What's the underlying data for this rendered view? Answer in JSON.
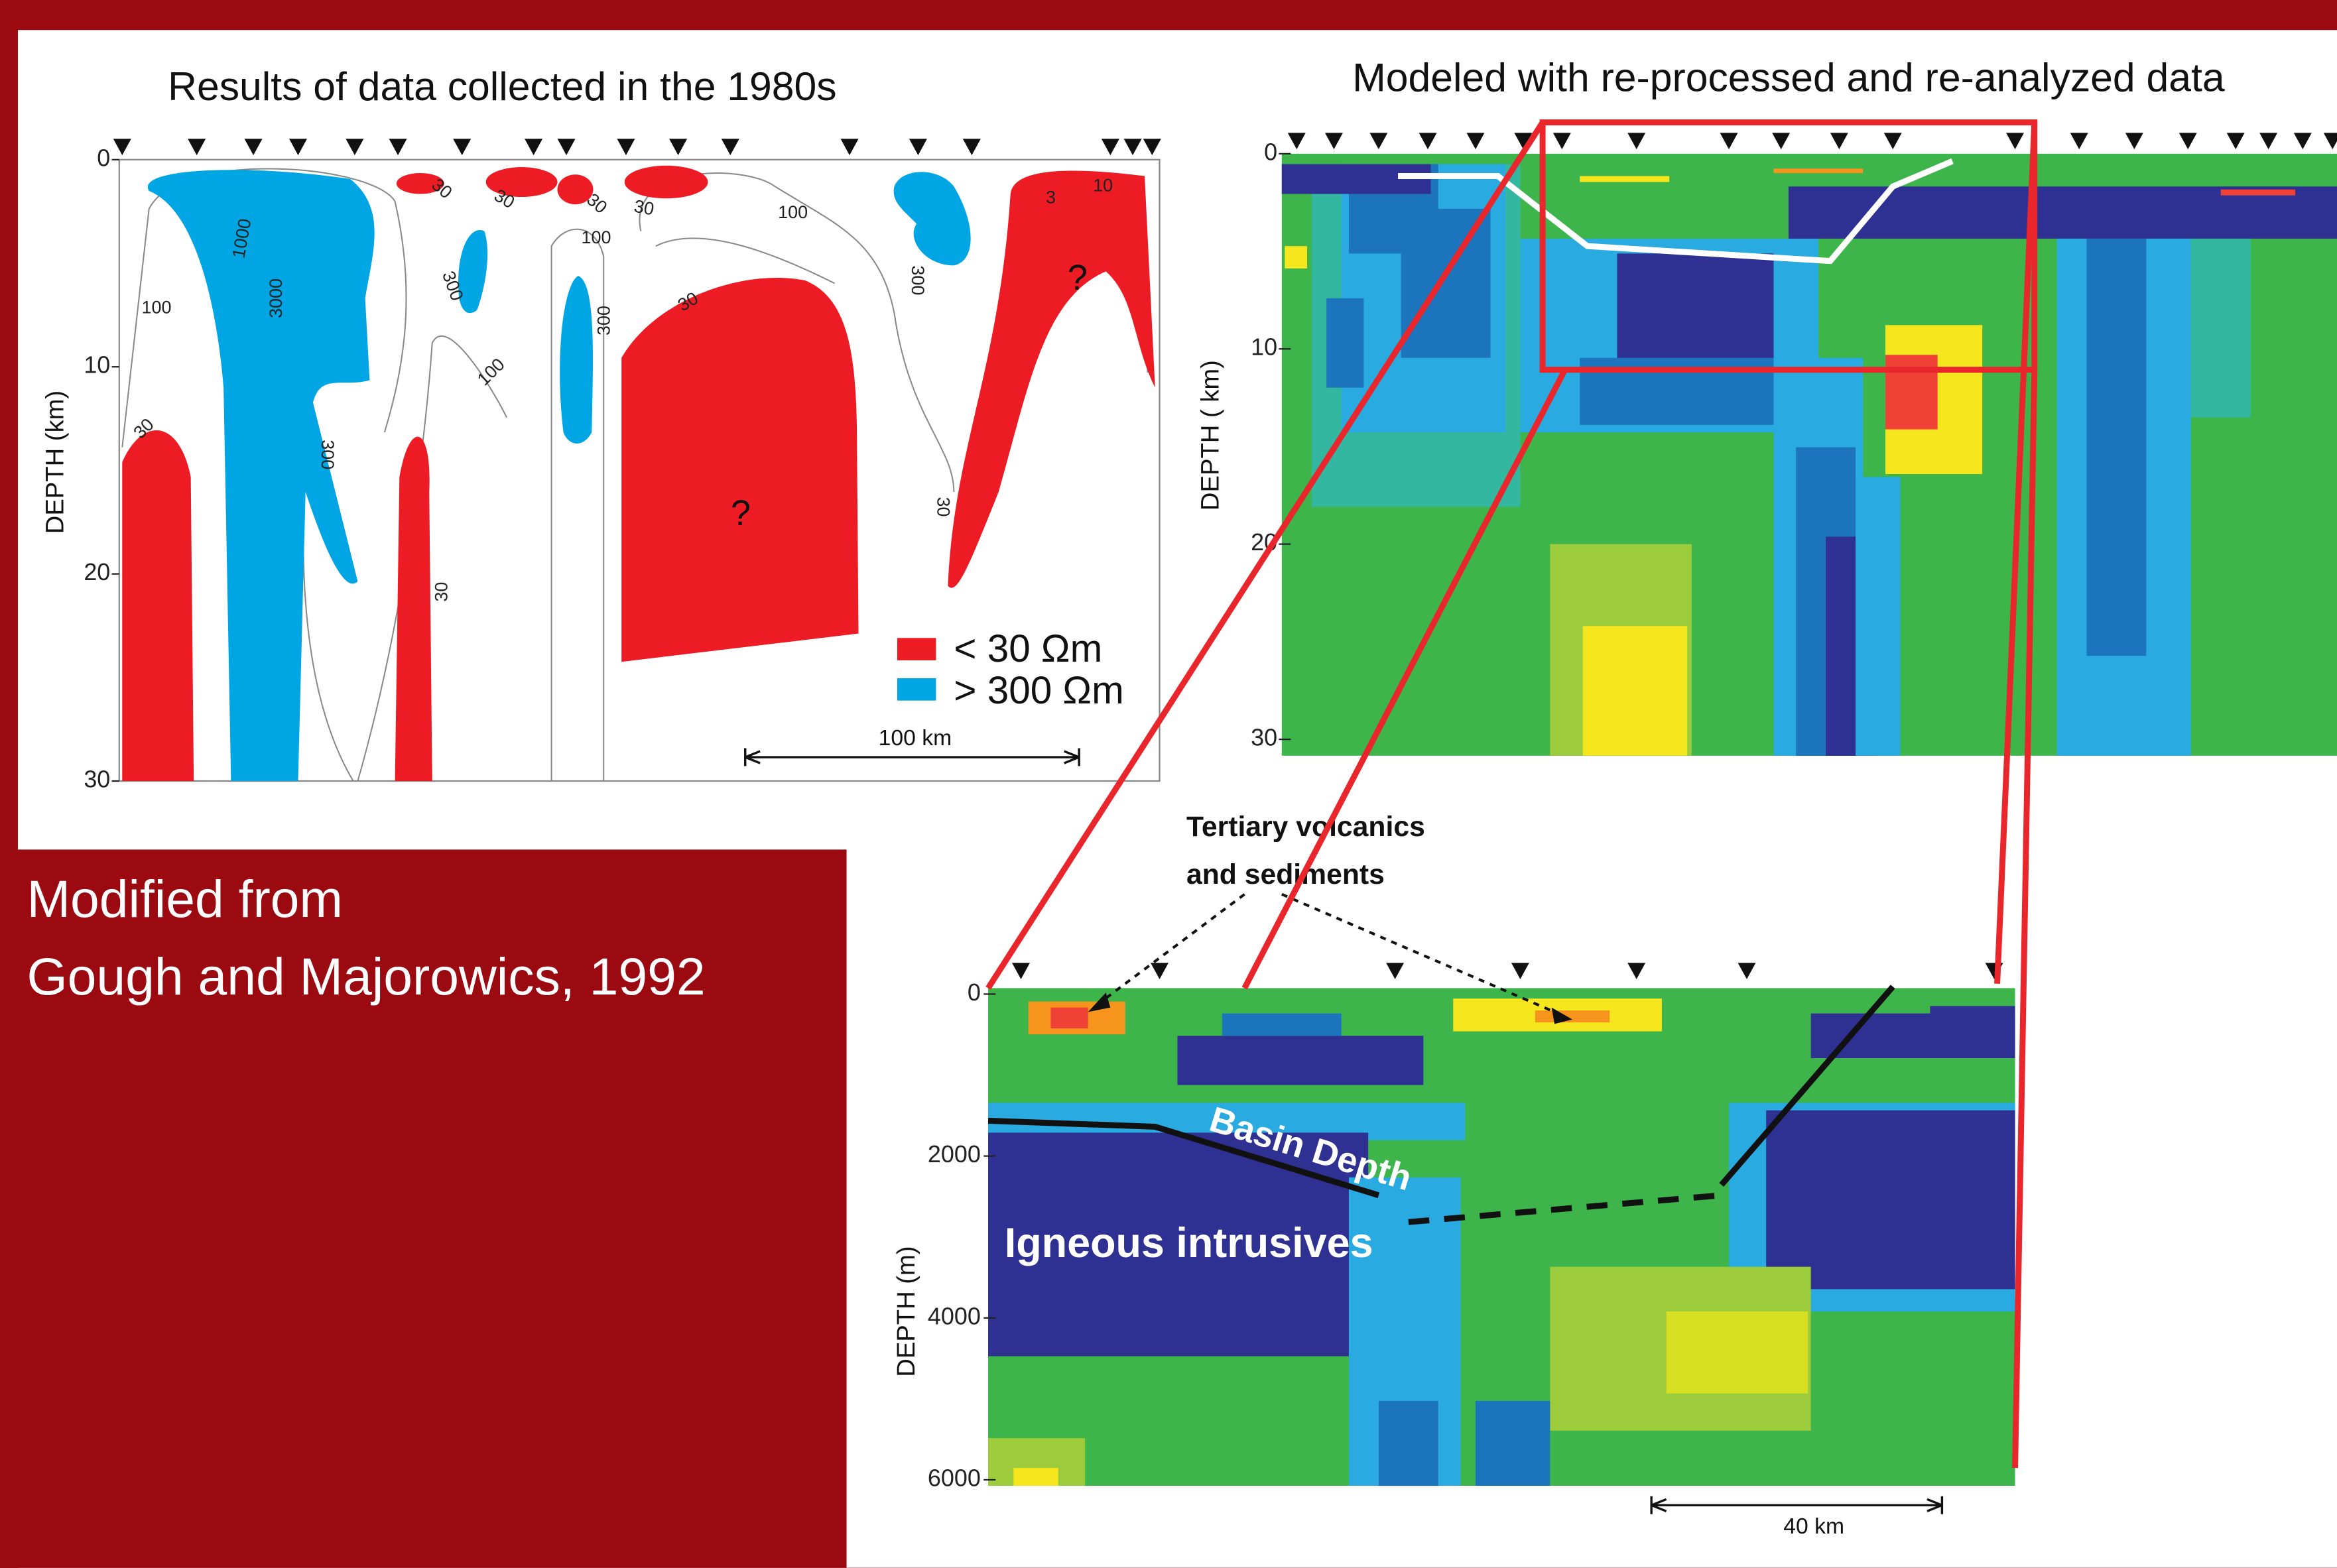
{
  "left_panel": {
    "title": "Results of data collected in the 1980s",
    "y_axis_label": "DEPTH (km)",
    "y_ticks": [
      0,
      10,
      20,
      30
    ],
    "contour_labels": [
      "30",
      "30",
      "30",
      "30",
      "100",
      "100",
      "1000",
      "3000",
      "100",
      "300",
      "300",
      "30",
      "100",
      "30",
      "300",
      "30",
      "300",
      "3",
      "10",
      "30"
    ],
    "question_marks": [
      "?",
      "?"
    ],
    "legend": [
      "< 30 Ωm",
      "> 300 Ωm"
    ],
    "scale_bar": "100 km"
  },
  "right_panel": {
    "title": "Modeled with re-processed and re-analyzed data",
    "y_axis_label": "DEPTH ( km)",
    "y_ticks": [
      0,
      10,
      20,
      30
    ]
  },
  "detail_panel": {
    "y_axis_label": "DEPTH (m)",
    "y_ticks": [
      0,
      2000,
      4000,
      6000
    ],
    "annotations": [
      "Tertiary volcanics",
      "and sediments",
      "Basin Depth",
      "Igneous intrusives"
    ],
    "scale_bar": "40 km"
  },
  "citation": [
    "Modified from",
    "Gough and Majorowics, 1992"
  ]
}
